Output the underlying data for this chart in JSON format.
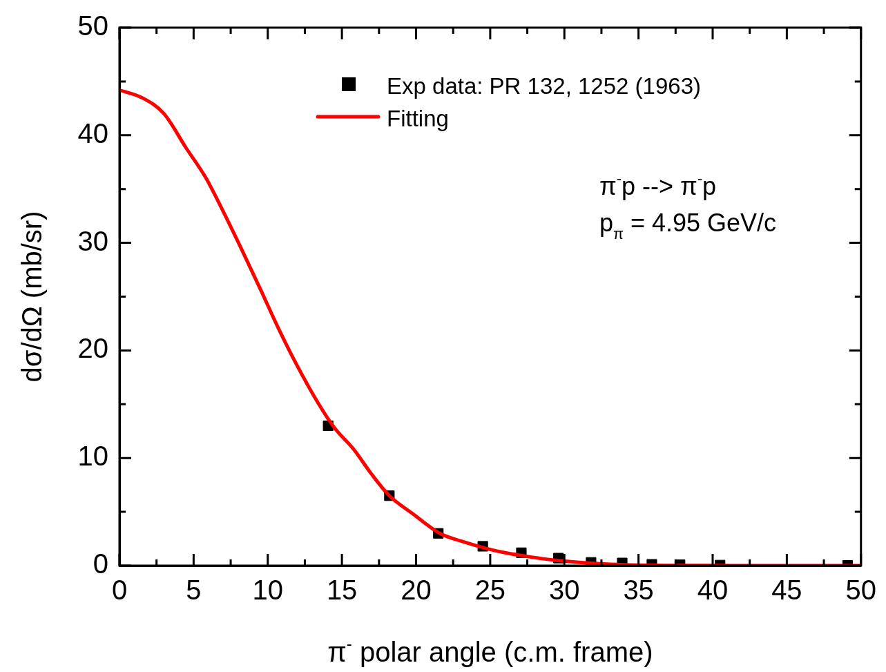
{
  "chart_data": {
    "type": "scatter",
    "xlabel": "π$^{-}$ polar angle (c.m. frame)",
    "ylabel": "dσ/dΩ (mb/sr)",
    "xlim": [
      0,
      50
    ],
    "ylim": [
      0,
      50
    ],
    "xticks": [
      0,
      {
        "value": 2.5,
        "label": null
      },
      5,
      {
        "value": 7.5,
        "label": null
      },
      10,
      {
        "value": 12.5,
        "label": null
      },
      15,
      {
        "value": 17.5,
        "label": null
      },
      20,
      {
        "value": 22.5,
        "label": null
      },
      25,
      {
        "value": 27.5,
        "label": null
      },
      30,
      {
        "value": 32.5,
        "label": null
      },
      35,
      {
        "value": 37.5,
        "label": null
      },
      40,
      {
        "value": 42.5,
        "label": null
      },
      45,
      {
        "value": 47.5,
        "label": null
      },
      50
    ],
    "yticks": [
      0,
      {
        "value": 5,
        "label": null
      },
      10,
      {
        "value": 15,
        "label": null
      },
      20,
      {
        "value": 25,
        "label": null
      },
      30,
      {
        "value": 35,
        "label": null
      },
      40,
      {
        "value": 45,
        "label": null
      },
      50
    ],
    "grid": false,
    "legend": "top",
    "annotations": [
      "π$^{-}$p --> π$^{-}$p",
      "p$_{π}$ = 4.95 GeV/c"
    ],
    "series": [
      {
        "name": "Exp data: PR 132, 1252 (1963)",
        "marker": "square",
        "color": "#000000",
        "x": [
          14.07,
          18.2,
          21.5,
          24.5,
          27.1,
          29.6,
          31.8,
          33.9,
          35.9,
          37.8,
          40.5,
          49.1
        ],
        "values": [
          13.0,
          6.5,
          3.0,
          1.8,
          1.2,
          0.7,
          0.3,
          0.25,
          0.12,
          0.08,
          0.05,
          0.03
        ]
      },
      {
        "name": "Fitting",
        "type": "line",
        "marker": "none",
        "line_style": "solid",
        "color": "#ff0000",
        "x": [
          0,
          1.5,
          3,
          4.5,
          5.8,
          7,
          8.2,
          9.5,
          10.7,
          11.9,
          13.4,
          14.5,
          15.8,
          17,
          18.2,
          19.8,
          21.6,
          23,
          24.6,
          26,
          27.3,
          28.5,
          29.8,
          31.5,
          33.1,
          35,
          36.8,
          40,
          45,
          50
        ],
        "values": [
          44.2,
          43.5,
          42.0,
          38.8,
          36.1,
          32.9,
          29.5,
          25.7,
          22.1,
          18.8,
          15.1,
          12.8,
          10.8,
          8.5,
          6.5,
          4.8,
          3.0,
          2.3,
          1.65,
          1.2,
          0.9,
          0.65,
          0.45,
          0.25,
          0.13,
          0.05,
          0.02,
          0.01,
          0,
          0
        ]
      }
    ]
  }
}
